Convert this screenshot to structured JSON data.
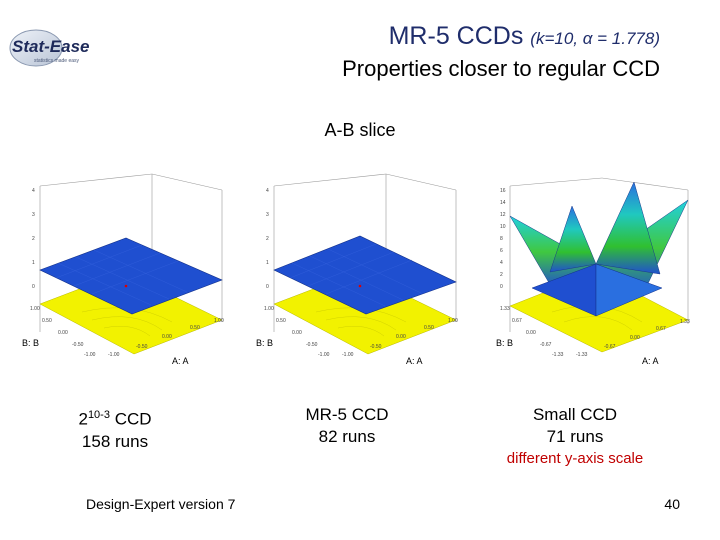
{
  "header": {
    "logo_text": "Stat-Ease",
    "logo_tagline": "statistics made easy",
    "title_main": "MR-5 CCDs",
    "title_params": "(k=10, α = 1.778)",
    "subtitle": "Properties closer to regular CCD",
    "slice_title": "A-B slice"
  },
  "plots": [
    {
      "axis_x": "A: A",
      "axis_y": "B: B",
      "z_ticks": [
        "4",
        "3",
        "2",
        "1",
        "0"
      ],
      "a_ticks": [
        "-1.00",
        "-0.50",
        "0.00",
        "0.50",
        "1.00"
      ],
      "b_ticks": [
        "1.00",
        "0.50",
        "0.00",
        "-0.50",
        "-1.00"
      ]
    },
    {
      "axis_x": "A: A",
      "axis_y": "B: B",
      "z_ticks": [
        "4",
        "3",
        "2",
        "1",
        "0"
      ],
      "a_ticks": [
        "-1.00",
        "-0.50",
        "0.00",
        "0.50",
        "1.00"
      ],
      "b_ticks": [
        "1.00",
        "0.50",
        "0.00",
        "-0.50",
        "-1.00"
      ]
    },
    {
      "axis_x": "A: A",
      "axis_y": "B: B",
      "z_ticks": [
        "16",
        "14",
        "12",
        "10",
        "8",
        "6",
        "4",
        "2",
        "0"
      ],
      "a_ticks": [
        "-1.33",
        "-0.67",
        "0.00",
        "0.67",
        "1.33"
      ],
      "b_ticks": [
        "1.33",
        "0.67",
        "0.00",
        "-0.67",
        "-1.33"
      ]
    }
  ],
  "captions": [
    {
      "base": "2",
      "exponent": "10-3",
      "suffix": " CCD",
      "runs": "158 runs"
    },
    {
      "design": "MR-5 CCD",
      "runs": "82 runs"
    },
    {
      "design": "Small CCD",
      "runs": "71 runs",
      "note": "different y-axis scale"
    }
  ],
  "footer": {
    "left": "Design-Expert version 7",
    "page_number": "40"
  },
  "colors": {
    "title": "#1f2d6b",
    "surface_blue": "#1f4fd0",
    "contour_yellow": "#f2f200",
    "note_red": "#c00000"
  }
}
